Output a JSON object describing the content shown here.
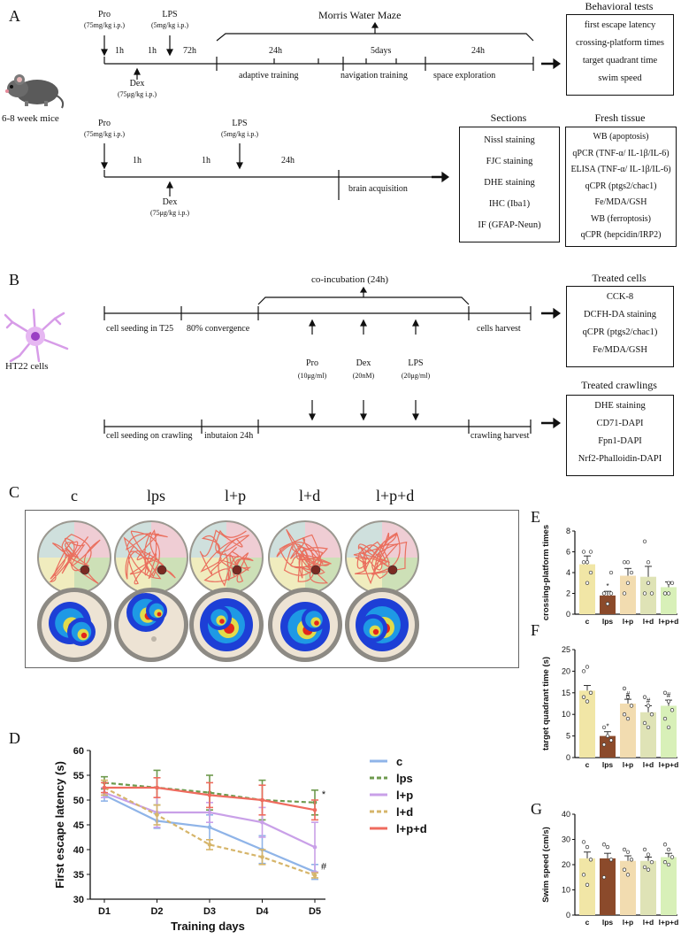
{
  "panels": {
    "A": "A",
    "B": "B",
    "C": "C",
    "D": "D",
    "E": "E",
    "F": "F",
    "G": "G"
  },
  "panelA": {
    "mice_label": "6-8 week mice",
    "top": {
      "pro": "Pro",
      "pro_dose": "(75mg/kg i.p.)",
      "lps": "LPS",
      "lps_dose": "(5mg/kg i.p.)",
      "dex": "Dex",
      "dex_dose": "(75μg/kg i.p.)",
      "t1": "1h",
      "t2": "1h",
      "t3": "72h",
      "mwm": "Morris Water Maze",
      "seg1_time": "24h",
      "seg2_time": "5days",
      "seg3_time": "24h",
      "seg1": "adaptive training",
      "seg2": "navigation training",
      "seg3": "space exploration"
    },
    "behavioral": {
      "title": "Behavioral tests",
      "items": [
        "first escape latency",
        "crossing-platform times",
        "target quadrant time",
        "swim speed"
      ]
    },
    "bottom": {
      "pro": "Pro",
      "pro_dose": "(75mg/kg i.p.)",
      "lps": "LPS",
      "lps_dose": "(5mg/kg i.p.)",
      "dex": "Dex",
      "dex_dose": "(75μg/kg i.p.)",
      "t1": "1h",
      "t2": "1h",
      "t3": "24h",
      "brain": "brain acquisition"
    },
    "sections": {
      "title": "Sections",
      "items": [
        "Nissl staining",
        "FJC staining",
        "DHE staining",
        "IHC (Iba1)",
        "IF (GFAP-Neun)"
      ]
    },
    "fresh": {
      "title": "Fresh tissue",
      "items": [
        "WB (apoptosis)",
        "qPCR (TNF-α/ IL-1β/IL-6)",
        "ELISA (TNF-α/ IL-1β/IL-6)",
        "qCPR (ptgs2/chac1)",
        "Fe/MDA/GSH",
        "WB (ferroptosis)",
        "qCPR (hepcidin/IRP2)"
      ]
    }
  },
  "panelB": {
    "cells_label": "HT22 cells",
    "coinc": "co-incubation (24h)",
    "top_segs": [
      "cell seeding in T25",
      "80% convergence",
      "cells harvest"
    ],
    "drugs": [
      {
        "name": "Pro",
        "dose": "(10μg/ml)"
      },
      {
        "name": "Dex",
        "dose": "(20nM)"
      },
      {
        "name": "LPS",
        "dose": "(20μg/ml)"
      }
    ],
    "bottom_segs": [
      "cell seeding on crawling",
      "inbutaion 24h",
      "crawling harvest"
    ],
    "treated_cells": {
      "title": "Treated cells",
      "items": [
        "CCK-8",
        "DCFH-DA staining",
        "qCPR (ptgs2/chac1)",
        "Fe/MDA/GSH"
      ]
    },
    "treated_crawlings": {
      "title": "Treated crawlings",
      "items": [
        "DHE staining",
        "CD71-DAPI",
        "Fpn1-DAPI",
        "Nrf2-Phalloidin-DAPI"
      ]
    }
  },
  "panelC": {
    "groups": [
      "c",
      "lps",
      "l+p",
      "l+d",
      "l+p+d"
    ]
  },
  "colors": {
    "c": "#8fb4e8",
    "lps": "#6e9a4e",
    "lp": "#c9a0e8",
    "ld": "#d6b56a",
    "lpd": "#ef6b5e",
    "bar_c": "#f1e6a6",
    "bar_lps": "#8b4a2b",
    "bar_lp": "#f2dcb0",
    "bar_ld": "#dfe3b6",
    "bar_lpd": "#d8f0b8"
  },
  "chart_data": [
    {
      "id": "D",
      "type": "line",
      "categories": [
        "D1",
        "D2",
        "D3",
        "D4",
        "D5"
      ],
      "xlabel": "Training days",
      "ylabel": "First escape latency (s)",
      "ylim": [
        30,
        60
      ],
      "yticks": [
        30,
        35,
        40,
        45,
        50,
        55,
        60
      ],
      "series": [
        {
          "name": "c",
          "values": [
            51.0,
            45.8,
            44.5,
            40.0,
            35.5
          ],
          "err": [
            1.2,
            1.5,
            2.5,
            2.8,
            1.5
          ]
        },
        {
          "name": "lps",
          "values": [
            53.5,
            52.5,
            51.5,
            50.0,
            49.5
          ],
          "err": [
            1.2,
            3.5,
            3.5,
            4.0,
            2.5
          ]
        },
        {
          "name": "l+p",
          "values": [
            51.5,
            47.5,
            47.5,
            45.5,
            40.5
          ],
          "err": [
            1.0,
            3.0,
            2.0,
            3.0,
            5.0
          ]
        },
        {
          "name": "l+d",
          "values": [
            52.5,
            47.0,
            41.0,
            38.5,
            34.8
          ],
          "err": [
            1.5,
            2.0,
            1.0,
            1.5,
            0.5
          ]
        },
        {
          "name": "l+p+d",
          "values": [
            52.5,
            52.5,
            51.0,
            50.0,
            48.0
          ],
          "err": [
            1.0,
            2.0,
            2.5,
            3.0,
            2.0
          ]
        }
      ],
      "annotations": [
        "*",
        "#"
      ],
      "legend_position": "right"
    },
    {
      "id": "E",
      "type": "bar",
      "categories": [
        "c",
        "lps",
        "l+p",
        "l+d",
        "l+p+d"
      ],
      "values": [
        4.8,
        1.8,
        3.7,
        3.6,
        2.6
      ],
      "err": [
        0.8,
        0.4,
        0.7,
        1.0,
        0.5
      ],
      "ylabel": "crossing-platform times",
      "ylim": [
        0,
        8
      ],
      "yticks": [
        0,
        2,
        4,
        6,
        8
      ],
      "points": [
        [
          6,
          5,
          4,
          5,
          3,
          6
        ],
        [
          2,
          1,
          2,
          2,
          1,
          4
        ],
        [
          5,
          3,
          4,
          2,
          5
        ],
        [
          7,
          3,
          2,
          2,
          5
        ],
        [
          2,
          3,
          3,
          2,
          2
        ]
      ],
      "marks": [
        "",
        "*",
        "",
        "",
        ""
      ]
    },
    {
      "id": "F",
      "type": "bar",
      "categories": [
        "c",
        "lps",
        "l+p",
        "l+d",
        "l+p+d"
      ],
      "values": [
        15.5,
        5.0,
        12.5,
        10.5,
        12.0
      ],
      "err": [
        1.2,
        1.0,
        1.0,
        1.5,
        1.3
      ],
      "ylabel": "target quadrant time (s)",
      "ylim": [
        0,
        25
      ],
      "yticks": [
        0,
        5,
        10,
        15,
        20,
        25
      ],
      "points": [
        [
          20,
          21,
          15,
          14,
          13
        ],
        [
          7,
          5,
          4,
          3
        ],
        [
          16,
          14,
          12,
          10,
          9
        ],
        [
          14,
          12,
          10,
          8,
          7
        ],
        [
          15,
          13,
          11,
          9,
          7
        ]
      ],
      "marks": [
        "",
        "*",
        "#",
        "#",
        "#"
      ]
    },
    {
      "id": "G",
      "type": "bar",
      "categories": [
        "c",
        "lps",
        "l+p",
        "l+d",
        "l+p+d"
      ],
      "values": [
        22.5,
        22.5,
        21.5,
        21.5,
        23.0
      ],
      "err": [
        2.5,
        2.0,
        2.0,
        1.5,
        1.5
      ],
      "ylabel": "Swim speed (cm/s)",
      "ylim": [
        0,
        40
      ],
      "yticks": [
        0,
        10,
        20,
        30,
        40
      ],
      "points": [
        [
          29,
          27,
          22,
          16,
          12
        ],
        [
          28,
          27,
          22,
          15
        ],
        [
          26,
          25,
          22,
          18,
          16
        ],
        [
          26,
          24,
          21,
          19,
          18
        ],
        [
          28,
          26,
          23,
          21,
          20
        ]
      ],
      "marks": [
        "",
        "",
        "",
        "",
        ""
      ]
    }
  ]
}
